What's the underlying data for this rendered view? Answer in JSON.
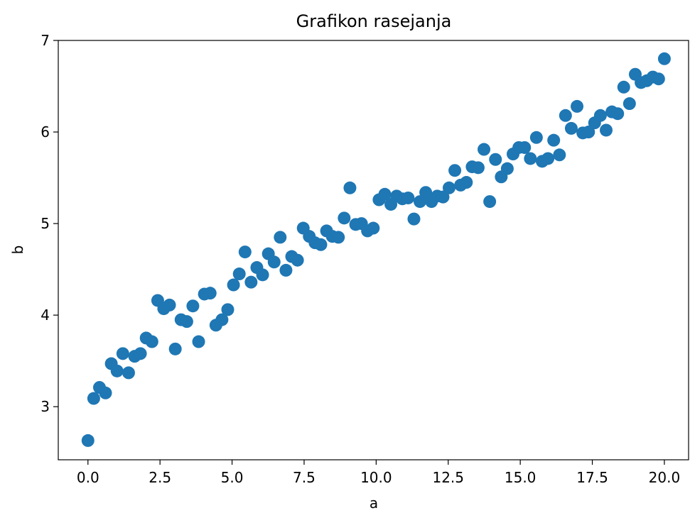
{
  "chart_data": {
    "type": "scatter",
    "title": "Grafikon rasejanja",
    "x_label": "a",
    "y_label": "b",
    "color": "#1f77b4",
    "x": [
      0.0,
      0.2,
      0.4,
      0.61,
      0.81,
      1.01,
      1.21,
      1.41,
      1.62,
      1.82,
      2.02,
      2.22,
      2.42,
      2.63,
      2.83,
      3.03,
      3.23,
      3.43,
      3.64,
      3.84,
      4.04,
      4.24,
      4.44,
      4.65,
      4.85,
      5.05,
      5.25,
      5.45,
      5.66,
      5.86,
      6.06,
      6.26,
      6.46,
      6.67,
      6.87,
      7.07,
      7.27,
      7.47,
      7.68,
      7.88,
      8.08,
      8.28,
      8.48,
      8.69,
      8.89,
      9.09,
      9.29,
      9.49,
      9.7,
      9.9,
      10.1,
      10.3,
      10.51,
      10.71,
      10.91,
      11.11,
      11.31,
      11.52,
      11.72,
      11.92,
      12.12,
      12.32,
      12.53,
      12.73,
      12.93,
      13.13,
      13.33,
      13.54,
      13.74,
      13.94,
      14.14,
      14.34,
      14.55,
      14.75,
      14.95,
      15.15,
      15.35,
      15.56,
      15.76,
      15.96,
      16.16,
      16.36,
      16.57,
      16.77,
      16.97,
      17.17,
      17.37,
      17.58,
      17.78,
      17.98,
      18.18,
      18.38,
      18.59,
      18.79,
      18.99,
      19.19,
      19.39,
      19.6,
      19.8,
      20.0
    ],
    "values": [
      2.63,
      3.09,
      3.21,
      3.15,
      3.47,
      3.39,
      3.58,
      3.37,
      3.55,
      3.58,
      3.75,
      3.71,
      4.16,
      4.07,
      4.11,
      3.63,
      3.95,
      3.93,
      4.1,
      3.71,
      4.23,
      4.24,
      3.89,
      3.95,
      4.06,
      4.33,
      4.45,
      4.69,
      4.36,
      4.52,
      4.44,
      4.67,
      4.58,
      4.85,
      4.49,
      4.64,
      4.6,
      4.95,
      4.86,
      4.79,
      4.77,
      4.92,
      4.86,
      4.85,
      5.06,
      5.39,
      4.99,
      5.0,
      4.92,
      4.95,
      5.26,
      5.32,
      5.21,
      5.3,
      5.27,
      5.28,
      5.05,
      5.24,
      5.34,
      5.24,
      5.3,
      5.29,
      5.39,
      5.58,
      5.42,
      5.45,
      5.62,
      5.61,
      5.81,
      5.24,
      5.7,
      5.51,
      5.6,
      5.76,
      5.83,
      5.83,
      5.71,
      5.94,
      5.68,
      5.71,
      5.91,
      5.75,
      6.18,
      6.04,
      6.28,
      5.99,
      6.0,
      6.1,
      6.18,
      6.02,
      6.22,
      6.2,
      6.49,
      6.31,
      6.63,
      6.54,
      6.56,
      6.6,
      6.58,
      6.8
    ],
    "xlim": [
      -1.03,
      20.84
    ],
    "ylim": [
      2.42,
      7.0
    ],
    "xticks": [
      {
        "value": 0,
        "label": "0.0"
      },
      2.5,
      {
        "value": 5,
        "label": "5.0"
      },
      7.5,
      {
        "value": 10,
        "label": "10.0"
      },
      12.5,
      {
        "value": 15,
        "label": "15.0"
      },
      17.5,
      {
        "value": 20,
        "label": "20.0"
      }
    ],
    "yticks": [
      3,
      4,
      5,
      6,
      7
    ]
  }
}
